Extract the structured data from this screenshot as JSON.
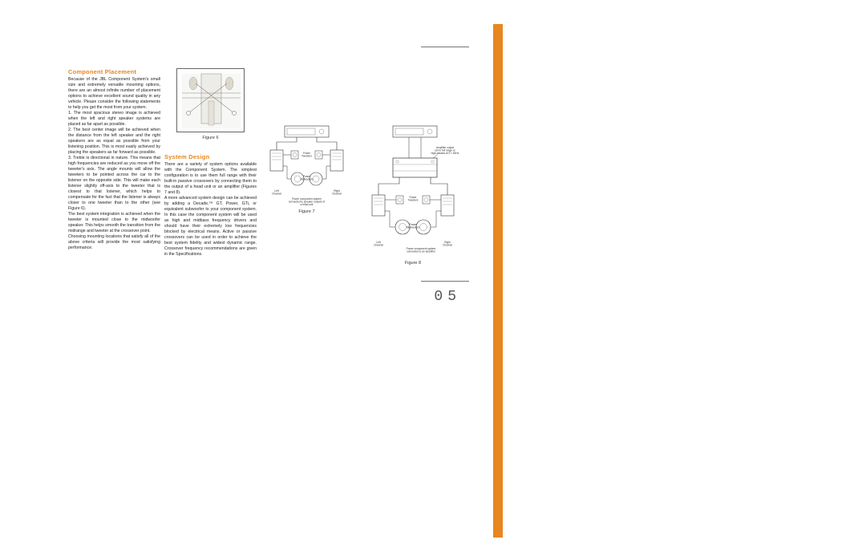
{
  "page_number": "05",
  "accent_color": "#e8861f",
  "column1": {
    "heading": "Component Placement",
    "body": "Because of the JBL Component System's small size and extremely versatile mounting options, there are an almost infinite number of placement options to achieve excellent sound quality in any vehicle. Please consider the following statements to help you get the most from your system.\n1. The most spacious stereo image is achieved when the left and right speaker systems are placed as far apart as possible.\n2. The best center image will be achieved when the distance from the left speaker and the right speakers are as equal as possible from your listening position. This is most easily achieved by placing the speakers as far forward as possible.\n3. Treble is directional in nature. This means that high frequencies are reduced as you move off the tweeter's axis. The angle mounts will allow the tweeters to be pointed across the car to the listener on the opposite side. This will make each listener slightly off-axis to the tweeter that is closest to that listener, which helps to compensate for the fact that the listener is always closer to one tweeter than to the other (see Figure 6).\nThe best system integration is achieved when the tweeter is mounted close to the midwoofer speaker. This helps smooth the transition from the midrange and tweeter at the crossover point.\nChoosing mounting locations that satisfy all of the above criteria will provide the most satisfying performance."
  },
  "column2": {
    "heading": "System Design",
    "body": "There are a variety of system options available with the Component System. The simplest configuration is to use them full range with their built-in passive crossovers by connecting them to the output of a head unit or an amplifier (Figures 7 and 8).\nA more advanced system design can be achieved by adding a Decade,™ GT, Power, GTi, or equivalent subwoofer to your component system. In this case the component system will be used as high and midbass frequency drivers and should have their extremely low frequencies blocked by electrical means. Active or passive crossovers can be used in order to achieve the best system fidelity and widest dynamic range. Crossover frequency recommendations are given in the Specifications."
  },
  "figure6": {
    "caption": "Figure 6"
  },
  "figure7": {
    "caption": "Figure 7",
    "labels": {
      "tweeters": "Power\nTweeters",
      "midwoofers": "Power\nMidwoofers",
      "left": "Left\nChannel",
      "right": "Right\nChannel",
      "note": "Power component system\nconnected to speaker outputs of\na head unit"
    }
  },
  "figure8": {
    "caption": "Figure 8",
    "labels": {
      "amp_note": "Amplifier output\nset to full range or\nhigh-passed at 2 × 60Hz",
      "tweeters": "Power\nTweeters",
      "midwoofers": "Power\nMidwoofers",
      "left": "Left\nChannel",
      "right": "Right\nChannel",
      "note": "Power component system\nconnected to an amplifier"
    }
  },
  "colors": {
    "text": "#222222",
    "stroke": "#333333",
    "bg": "#ffffff"
  }
}
